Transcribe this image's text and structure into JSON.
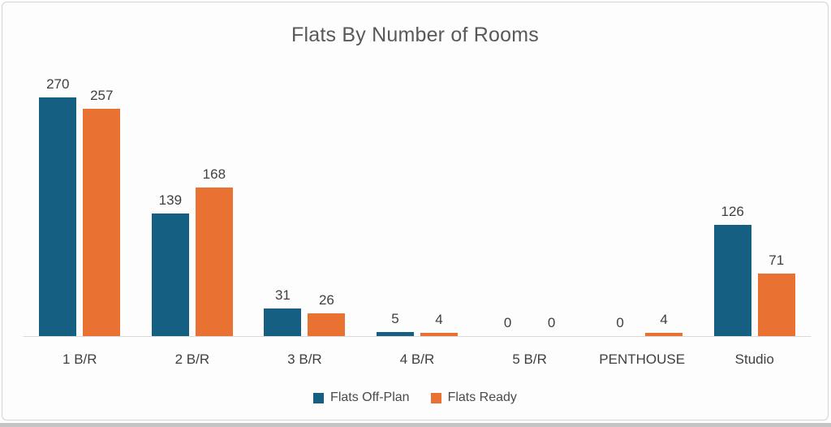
{
  "chart_data": {
    "type": "bar",
    "title": "Flats By Number of Rooms",
    "categories": [
      "1 B/R",
      "2 B/R",
      "3 B/R",
      "4 B/R",
      "5 B/R",
      "PENTHOUSE",
      "Studio"
    ],
    "series": [
      {
        "name": "Flats Off-Plan",
        "color": "#156082",
        "values": [
          270,
          139,
          31,
          5,
          0,
          0,
          126
        ]
      },
      {
        "name": "Flats Ready",
        "color": "#E97132",
        "values": [
          257,
          168,
          26,
          4,
          0,
          4,
          71
        ]
      }
    ],
    "ylim": [
      0,
      270
    ],
    "grid": false,
    "data_labels": true,
    "legend_position": "bottom",
    "colors": {
      "title_text": "#595959",
      "label_text": "#404040",
      "axis_line": "#d9d9d9",
      "card_border": "#d4d4d4",
      "bottom_strip": "#c5c5c5"
    }
  }
}
